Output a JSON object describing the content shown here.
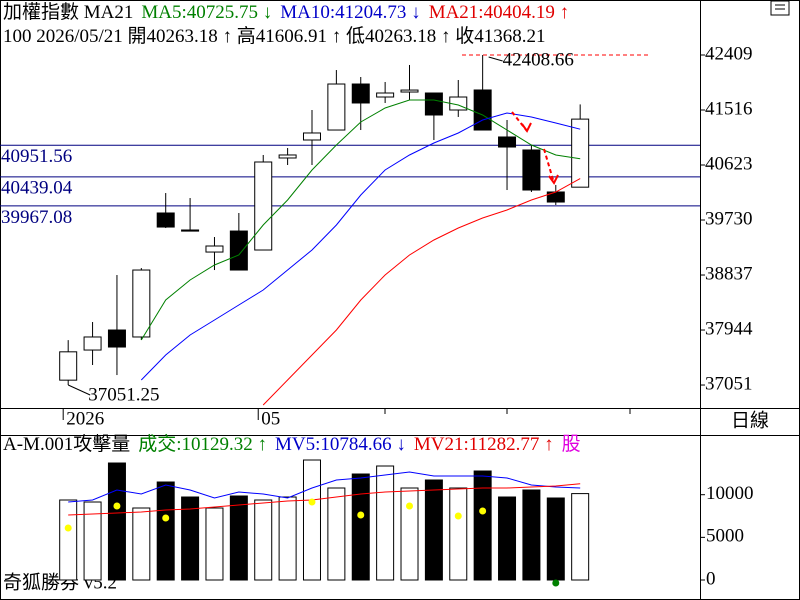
{
  "header": {
    "lines": [
      [
        {
          "text": "加權指數 MA21",
          "color": "#000000"
        },
        {
          "text": "MA5:40725.75 ↓",
          "color": "#008000"
        },
        {
          "text": "MA10:41204.73 ↓",
          "color": "#0000c8"
        },
        {
          "text": "MA21:40404.19 ↑",
          "color": "#e00000"
        }
      ],
      [
        {
          "text": "100 2026/05/21 開40263.18 ↑ 高41606.91 ↑ 低40263.18 ↑ 收41368.21",
          "color": "#000000"
        }
      ]
    ]
  },
  "period": "日線",
  "footer": "奇狐勝券 v5.2",
  "chart_data": [
    {
      "type": "candlestick",
      "categories": [
        "2026",
        null,
        null,
        null,
        null,
        null,
        null,
        null,
        "05",
        null,
        null,
        null,
        null,
        null,
        null,
        null,
        null,
        null,
        null,
        null,
        null,
        null
      ],
      "open": [
        37130,
        37619,
        37944,
        37831,
        39844,
        39568,
        39210,
        39551,
        39243,
        40737,
        41029,
        41191,
        41938,
        41727,
        41808,
        41792,
        41516,
        41841,
        41078,
        40867,
        40185,
        40263.18
      ],
      "high": [
        37780,
        38074,
        38837,
        38950,
        40168,
        40087,
        39454,
        39844,
        40786,
        40899,
        41516,
        42165,
        42052,
        41971,
        42247,
        41792,
        42003,
        42408.66,
        41354,
        40948,
        40299,
        41606.91
      ],
      "low": [
        37051.25,
        37376,
        37213,
        37782,
        39600,
        39550,
        38918,
        38918,
        39243,
        40623,
        40623,
        41191,
        41191,
        41630,
        41678,
        41029,
        41403,
        41191,
        40217,
        40185,
        39974,
        40263.18
      ],
      "close": [
        37590,
        37831,
        37668,
        38918,
        39616,
        39550,
        39308,
        38918,
        40672,
        40786,
        41143,
        41938,
        41630,
        41792,
        41840,
        41435,
        41727,
        41191,
        40915,
        40217,
        40022,
        41368.21
      ],
      "up_color": "#ffffff",
      "down_color": "#000000",
      "series": [
        {
          "name": "MA5",
          "color": "#008000",
          "values": [
            null,
            null,
            null,
            37782,
            38431,
            38756,
            38999,
            39162,
            39649,
            40055,
            40542,
            40948,
            41321,
            41549,
            41678,
            41678,
            41597,
            41435,
            41191,
            40948,
            40785,
            40725.75
          ]
        },
        {
          "name": "MA10",
          "color": "#0000ff",
          "values": [
            null,
            null,
            null,
            37132,
            37538,
            37863,
            38106,
            38350,
            38594,
            38918,
            39243,
            39649,
            40136,
            40542,
            40785,
            40980,
            41143,
            41354,
            41467,
            41402,
            41305,
            41204.73
          ]
        },
        {
          "name": "MA21",
          "color": "#ff0000",
          "values": [
            null,
            null,
            null,
            null,
            null,
            null,
            null,
            null,
            36726,
            37132,
            37538,
            37944,
            38431,
            38837,
            39162,
            39405,
            39600,
            39763,
            39892,
            40055,
            40185,
            40404.19
          ]
        }
      ],
      "hlines": [
        40951.56,
        40439.04,
        39967.08
      ],
      "hline_color": "#000080",
      "annotations": [
        42408.66,
        37051.25
      ],
      "ylim": [
        36678,
        43302
      ],
      "yticks": [
        37051,
        37944,
        38837,
        39730,
        40623,
        41516,
        42409
      ]
    },
    {
      "type": "bar",
      "header": [
        {
          "text": "A-M.001攻擊量",
          "color": "#000000"
        },
        {
          "text": "成交:10129.32 ↑",
          "color": "#008000"
        },
        {
          "text": "MV5:10784.66 ↓",
          "color": "#0000c8"
        },
        {
          "text": "MV21:11282.77 ↑",
          "color": "#e00000"
        },
        {
          "text": "股",
          "color": "#e000e0"
        }
      ],
      "values": [
        9379,
        9144,
        13716,
        8441,
        11489,
        9730,
        8441,
        9848,
        9379,
        9730,
        14068,
        10786,
        12427,
        13365,
        10786,
        11723,
        10786,
        12778,
        9730,
        10551,
        9613,
        10129.32
      ],
      "series": [
        {
          "name": "MV5",
          "color": "#0000ff",
          "values": [
            9144,
            9379,
            10551,
            10082,
            11137,
            10551,
            9613,
            10316,
            10082,
            9613,
            10786,
            11723,
            11958,
            12309,
            12661,
            12192,
            12192,
            12192,
            11958,
            11137,
            10903,
            10784.66
          ]
        },
        {
          "name": "MV21",
          "color": "#ff0000",
          "values": [
            7620,
            7737,
            7854,
            7972,
            8206,
            8324,
            8558,
            8793,
            9027,
            9262,
            9379,
            9730,
            10082,
            10316,
            10434,
            10551,
            10669,
            10786,
            10786,
            10903,
            11020,
            11282.77
          ]
        }
      ],
      "dots": {
        "values": [
          6096,
          null,
          8675,
          null,
          7268,
          null,
          null,
          null,
          null,
          null,
          9144,
          null,
          7620,
          null,
          8675,
          null,
          7503,
          8089,
          null,
          null,
          -350,
          null
        ],
        "colors": [
          "#ffff00",
          null,
          "#ffff00",
          null,
          "#ffff00",
          null,
          null,
          null,
          null,
          null,
          "#ffff00",
          null,
          "#ffff00",
          null,
          "#ffff00",
          null,
          "#ffff00",
          "#ffff00",
          null,
          null,
          "#008000",
          null
        ]
      },
      "ylim": [
        -2345,
        17000
      ],
      "yticks": [
        0,
        5000,
        10000
      ]
    }
  ]
}
